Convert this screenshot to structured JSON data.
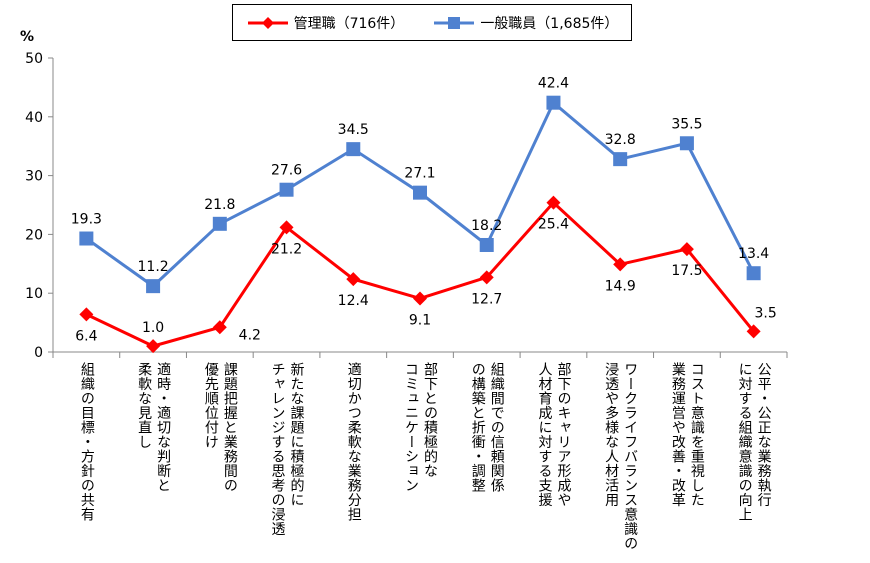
{
  "chart_data": {
    "type": "line",
    "ylabel": "%",
    "ylim": [
      0,
      50
    ],
    "yticks": [
      0,
      10,
      20,
      30,
      40,
      50
    ],
    "grid": false,
    "legend_position": "top",
    "categories": [
      "組織の目標・方針の共有",
      "適時・適切な判断と\n柔軟な見直し",
      "課題把握と業務間の\n優先順位付け",
      "新たな課題に積極的に\nチャレンジする思考の浸透",
      "適切かつ柔軟な業務分担",
      "部下との積極的な\nコミュニケーション",
      "組織間での信頼関係\nの構築と折衝・調整",
      "部下のキャリア形成や\n人材育成に対する支援",
      "ワークライフバランス意識の\n浸透や多様な人材活用",
      "コスト意識を重視した\n業務運営や改善・改革",
      "公平・公正な業務執行\nに対する組織意識の向上"
    ],
    "series": [
      {
        "name": "管理職（716件）",
        "color": "#ff0000",
        "marker": "diamond",
        "values": [
          6.4,
          1.0,
          4.2,
          21.2,
          12.4,
          9.1,
          12.7,
          25.4,
          14.9,
          17.5,
          3.5
        ]
      },
      {
        "name": "一般職員（1,685件）",
        "color": "#4f81d0",
        "marker": "square",
        "values": [
          19.3,
          11.2,
          21.8,
          27.6,
          34.5,
          27.1,
          18.2,
          42.4,
          32.8,
          35.5,
          13.4
        ]
      }
    ]
  }
}
